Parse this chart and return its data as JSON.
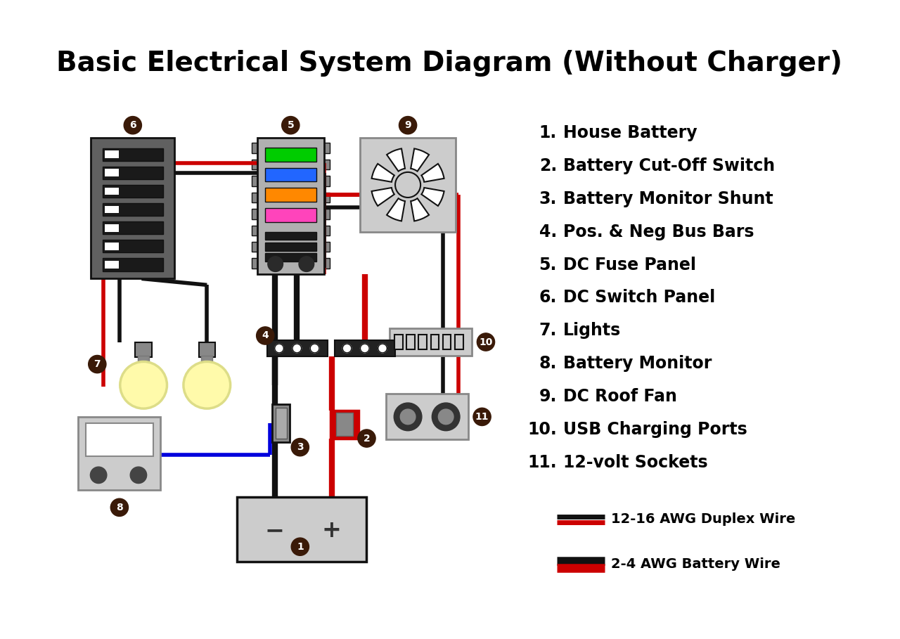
{
  "title": "Basic Electrical System Diagram (Without Charger)",
  "title_fontsize": 28,
  "background_color": "#ffffff",
  "legend_items": [
    "House Battery",
    "Battery Cut-Off Switch",
    "Battery Monitor Shunt",
    "Pos. & Neg Bus Bars",
    "DC Fuse Panel",
    "DC Switch Panel",
    "Lights",
    "Battery Monitor",
    "DC Roof Fan",
    "USB Charging Ports",
    "12-volt Sockets"
  ],
  "label_bg_color": "#3a1a08",
  "label_text_color": "#ffffff",
  "red": "#cc0000",
  "black": "#111111",
  "blue": "#0000dd",
  "gray_dark": "#606060",
  "gray_mid": "#888888",
  "gray_light": "#cccccc",
  "gray_fuse": "#b0b0b0",
  "fuse_colors": [
    "#00cc00",
    "#2266ff",
    "#ff8800",
    "#ff44bb"
  ],
  "yellow_bulb": "#fffaaa",
  "yellow_bulb_edge": "#dddd88"
}
